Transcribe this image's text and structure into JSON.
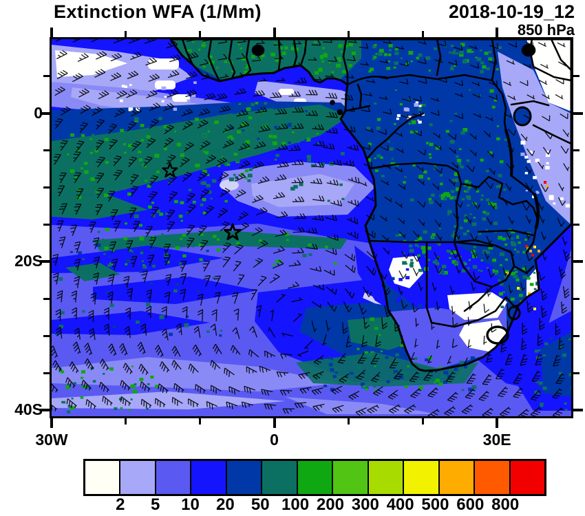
{
  "header": {
    "title": "Extinction WFA (1/Mm)",
    "datetime": "2018-10-19_12",
    "level": "850 hPa"
  },
  "axes": {
    "x": {
      "major": [
        {
          "label": "30W",
          "lon": -30
        },
        {
          "label": "0",
          "lon": 0
        },
        {
          "label": "30E",
          "lon": 30
        }
      ],
      "minor_lons": [
        -20,
        -10,
        10,
        20
      ]
    },
    "y": {
      "major": [
        {
          "label": "0",
          "lat": 0
        },
        {
          "label": "20S",
          "lat": -20
        },
        {
          "label": "40S",
          "lat": -40
        }
      ],
      "minor_lats": [
        5,
        -5,
        -10,
        -15,
        -25,
        -30,
        -35
      ]
    }
  },
  "colorbar": {
    "boundaries": [
      "2",
      "5",
      "10",
      "20",
      "50",
      "100",
      "200",
      "300",
      "400",
      "500",
      "600",
      "800"
    ],
    "colors": [
      "#fffff6",
      "#a8a8f8",
      "#5a5af2",
      "#1414ff",
      "#0038a8",
      "#0b7062",
      "#0fa812",
      "#52c414",
      "#a8dc00",
      "#f2f200",
      "#ffac00",
      "#ff5a00",
      "#f20000"
    ]
  },
  "markers": {
    "star_count": 2
  }
}
